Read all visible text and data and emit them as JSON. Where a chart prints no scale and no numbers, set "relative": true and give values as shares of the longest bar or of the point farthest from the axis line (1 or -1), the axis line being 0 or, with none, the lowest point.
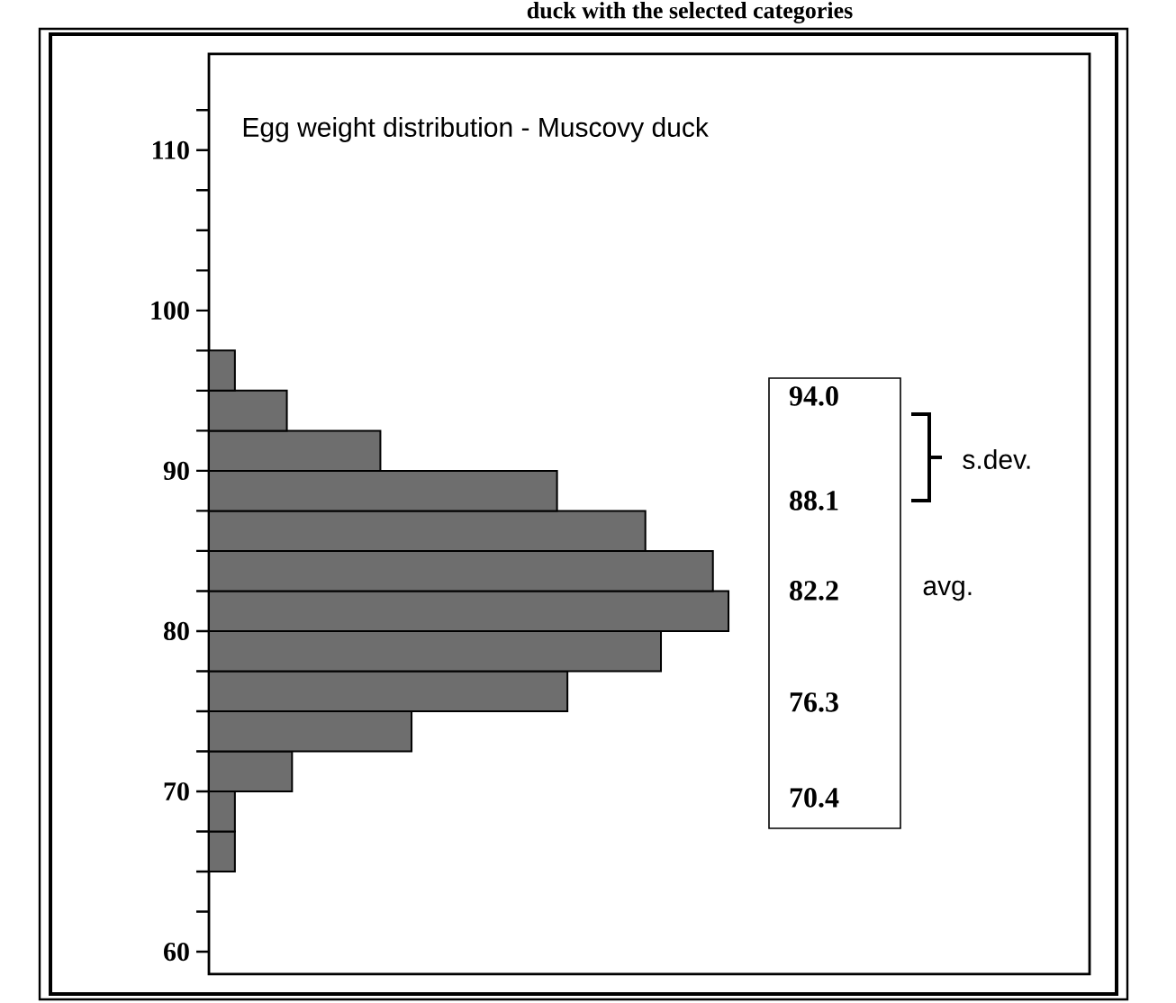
{
  "chart_data": {
    "type": "bar",
    "title": "duck with the selected categories",
    "subtitle": "Egg weight distribution - Muscovy duck",
    "orientation": "horizontal",
    "relative": true,
    "x": [
      66.25,
      68.75,
      71.25,
      73.75,
      76.25,
      78.75,
      81.25,
      83.75,
      86.25,
      88.75,
      91.25,
      93.75,
      96.25
    ],
    "values": [
      0.05,
      0.05,
      0.16,
      0.39,
      0.69,
      0.87,
      1,
      0.97,
      0.84,
      0.67,
      0.33,
      0.15,
      0.05
    ],
    "color": "#6e6e6e",
    "ylim": [
      58.6,
      116
    ],
    "yticks": [
      60,
      {
        "value": 62.5,
        "label": null
      },
      {
        "value": 65,
        "label": null
      },
      {
        "value": 67.5,
        "label": null
      },
      70,
      {
        "value": 72.5,
        "label": null
      },
      {
        "value": 75,
        "label": null
      },
      {
        "value": 77.5,
        "label": null
      },
      80,
      {
        "value": 82.5,
        "label": null
      },
      {
        "value": 85,
        "label": null
      },
      {
        "value": 87.5,
        "label": null
      },
      90,
      {
        "value": 92.5,
        "label": null
      },
      {
        "value": 95,
        "label": null
      },
      {
        "value": 97.5,
        "label": null
      },
      100,
      {
        "value": 102.5,
        "label": null
      },
      {
        "value": 105,
        "label": null
      },
      {
        "value": 107.5,
        "label": null
      },
      110,
      {
        "value": 112.5,
        "label": null
      }
    ],
    "annotations": [
      "94.0",
      "88.1",
      "82.2",
      "76.3",
      "70.4",
      "s.dev.",
      "avg."
    ]
  }
}
